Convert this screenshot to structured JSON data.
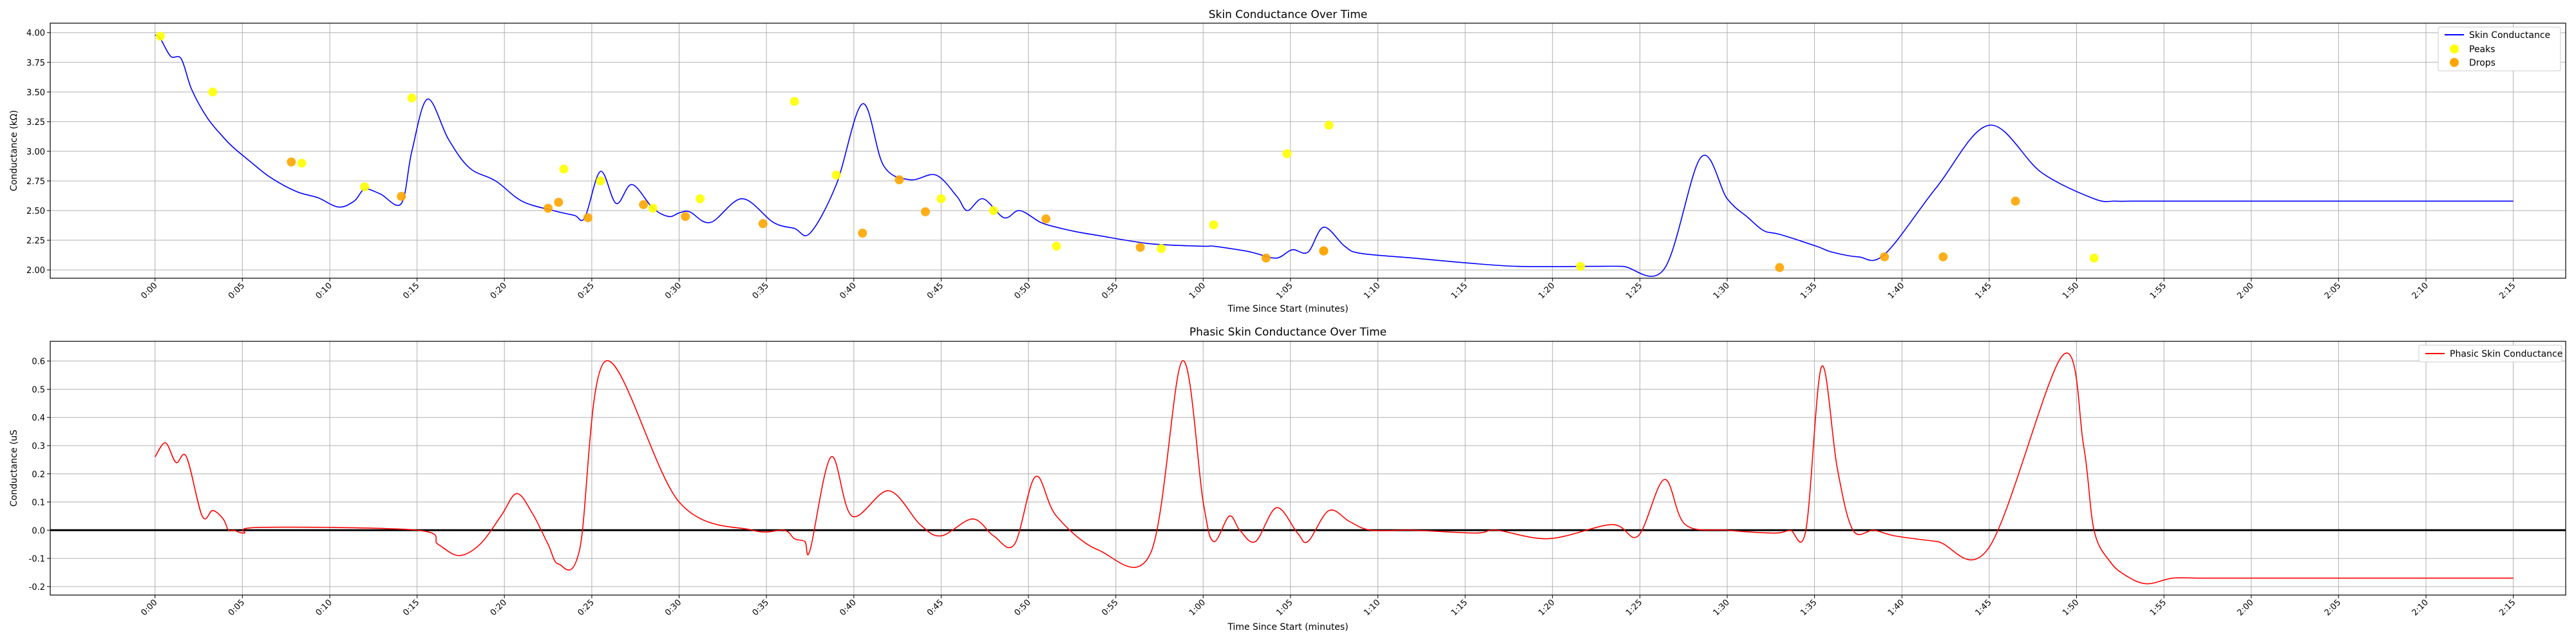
{
  "chart_data": [
    {
      "type": "line",
      "title": "Skin Conductance Over Time",
      "xlabel": "Time Since Start (minutes)",
      "ylabel": "Conductance (kΩ)",
      "xlim": [
        -0.1,
        2.3
      ],
      "ylim": [
        1.93,
        4.08
      ],
      "x_ticks": [
        0,
        0.0833,
        0.1667,
        0.25,
        0.3333,
        0.4167,
        0.5,
        0.5833,
        0.6667,
        0.75,
        0.8333,
        0.9167,
        1.0,
        1.0833,
        1.1667,
        1.25,
        1.3333,
        1.4167,
        1.5,
        1.5833,
        1.6667,
        1.75,
        1.8333,
        1.9167,
        2.0,
        2.0833,
        2.1667,
        2.25
      ],
      "x_tick_labels": [
        "0:00",
        "0:05",
        "0:10",
        "0:15",
        "0:20",
        "0:25",
        "0:30",
        "0:35",
        "0:40",
        "0:45",
        "0:50",
        "0:55",
        "1:00",
        "1:05",
        "1:10",
        "1:15",
        "1:20",
        "1:25",
        "1:30",
        "1:35",
        "1:40",
        "1:45",
        "1:50",
        "1:55",
        "2:00",
        "2:05",
        "2:10",
        "2:15"
      ],
      "y_ticks": [
        2.0,
        2.25,
        2.5,
        2.75,
        3.0,
        3.25,
        3.5,
        3.75,
        4.0
      ],
      "y_tick_labels": [
        "2.00",
        "2.25",
        "2.50",
        "2.75",
        "3.00",
        "3.25",
        "3.50",
        "3.75",
        "4.00"
      ],
      "grid": true,
      "legend_position": "top-right",
      "series": [
        {
          "name": "Skin Conductance",
          "kind": "line",
          "color": "#0000ff",
          "x": [
            0.0,
            0.005,
            0.015,
            0.025,
            0.035,
            0.05,
            0.065,
            0.075,
            0.09,
            0.11,
            0.135,
            0.155,
            0.175,
            0.19,
            0.2,
            0.215,
            0.235,
            0.245,
            0.26,
            0.28,
            0.3,
            0.325,
            0.35,
            0.38,
            0.4,
            0.41,
            0.425,
            0.44,
            0.455,
            0.475,
            0.49,
            0.5,
            0.51,
            0.53,
            0.56,
            0.59,
            0.61,
            0.625,
            0.65,
            0.675,
            0.695,
            0.72,
            0.745,
            0.765,
            0.775,
            0.79,
            0.81,
            0.825,
            0.845,
            0.86,
            0.88,
            0.9,
            0.95,
            1.0,
            1.01,
            1.04,
            1.05,
            1.07,
            1.085,
            1.1,
            1.115,
            1.135,
            1.15,
            1.2,
            1.25,
            1.3,
            1.37,
            1.4,
            1.44,
            1.475,
            1.5,
            1.52,
            1.535,
            1.55,
            1.585,
            1.6,
            1.625,
            1.65,
            1.7,
            1.75,
            1.8,
            1.85,
            1.87,
            1.885,
            1.9,
            1.92,
            1.95,
            2.0,
            2.05,
            2.1,
            2.13,
            2.145,
            2.155,
            2.17,
            2.185,
            2.21,
            2.25
          ],
          "y": [
            3.98,
            3.95,
            3.8,
            3.78,
            3.52,
            3.28,
            3.12,
            3.03,
            2.92,
            2.78,
            2.66,
            2.61,
            2.53,
            2.58,
            2.68,
            2.64,
            2.56,
            3.0,
            3.44,
            3.1,
            2.86,
            2.75,
            2.58,
            2.5,
            2.46,
            2.44,
            2.83,
            2.56,
            2.72,
            2.52,
            2.45,
            2.48,
            2.49,
            2.4,
            2.6,
            2.4,
            2.35,
            2.31,
            2.72,
            3.4,
            2.88,
            2.76,
            2.8,
            2.62,
            2.5,
            2.6,
            2.44,
            2.5,
            2.4,
            2.36,
            2.32,
            2.29,
            2.22,
            2.2,
            2.2,
            2.16,
            2.14,
            2.1,
            2.17,
            2.15,
            2.36,
            2.2,
            2.14,
            2.1,
            2.06,
            2.03,
            2.03,
            2.03,
            2.01,
            2.95,
            2.6,
            2.44,
            2.33,
            2.3,
            2.2,
            2.15,
            2.11,
            2.13,
            2.7,
            3.22,
            2.82,
            2.6,
            2.58,
            2.58,
            2.58,
            2.58,
            2.58,
            2.58,
            2.58,
            2.58,
            2.58,
            2.58,
            2.58,
            2.58,
            2.58,
            2.58,
            2.58
          ]
        },
        {
          "name": "Peaks",
          "kind": "scatter",
          "color": "#ffff00",
          "x": [
            0.005,
            0.055,
            0.14,
            0.2,
            0.245,
            0.39,
            0.425,
            0.475,
            0.52,
            0.61,
            0.65,
            0.75,
            0.8,
            0.86,
            0.96,
            1.01,
            1.08,
            1.12,
            1.36,
            1.85
          ],
          "y": [
            3.97,
            3.5,
            2.9,
            2.7,
            3.45,
            2.85,
            2.75,
            2.52,
            2.6,
            3.42,
            2.8,
            2.6,
            2.5,
            2.2,
            2.18,
            2.38,
            2.98,
            3.22,
            2.03,
            2.1
          ]
        },
        {
          "name": "Drops",
          "kind": "scatter",
          "color": "#ffa500",
          "x": [
            0.13,
            0.235,
            0.375,
            0.385,
            0.413,
            0.466,
            0.506,
            0.58,
            0.675,
            0.71,
            0.735,
            0.85,
            0.94,
            1.06,
            1.115,
            1.115,
            1.55,
            1.65,
            1.706,
            1.775
          ],
          "y": [
            2.91,
            2.62,
            2.52,
            2.57,
            2.44,
            2.55,
            2.45,
            2.39,
            2.31,
            2.76,
            2.49,
            2.43,
            2.19,
            2.1,
            2.16,
            2.16,
            2.02,
            2.11,
            2.11,
            2.58
          ]
        }
      ]
    },
    {
      "type": "line",
      "title": "Phasic Skin Conductance Over Time",
      "xlabel": "Time Since Start (minutes)",
      "ylabel": "Conductance (uS",
      "xlim": [
        -0.1,
        2.3
      ],
      "ylim": [
        -0.23,
        0.67
      ],
      "x_ticks": [
        0,
        0.0833,
        0.1667,
        0.25,
        0.3333,
        0.4167,
        0.5,
        0.5833,
        0.6667,
        0.75,
        0.8333,
        0.9167,
        1.0,
        1.0833,
        1.1667,
        1.25,
        1.3333,
        1.4167,
        1.5,
        1.5833,
        1.6667,
        1.75,
        1.8333,
        1.9167,
        2.0,
        2.0833,
        2.1667,
        2.25
      ],
      "x_tick_labels": [
        "0:00",
        "0:05",
        "0:10",
        "0:15",
        "0:20",
        "0:25",
        "0:30",
        "0:35",
        "0:40",
        "0:45",
        "0:50",
        "0:55",
        "1:00",
        "1:05",
        "1:10",
        "1:15",
        "1:20",
        "1:25",
        "1:30",
        "1:35",
        "1:40",
        "1:45",
        "1:50",
        "1:55",
        "2:00",
        "2:05",
        "2:10",
        "2:15"
      ],
      "y_ticks": [
        -0.2,
        -0.1,
        0.0,
        0.1,
        0.2,
        0.3,
        0.4,
        0.5,
        0.6
      ],
      "y_tick_labels": [
        "-0.2",
        "-0.1",
        "0.0",
        "0.1",
        "0.2",
        "0.3",
        "0.4",
        "0.5",
        "0.6"
      ],
      "grid": true,
      "zero_line": true,
      "legend_position": "top-right",
      "series": [
        {
          "name": "Phasic Skin Conductance",
          "kind": "line",
          "color": "#ff0000",
          "x": [
            0.0,
            0.01,
            0.02,
            0.03,
            0.045,
            0.055,
            0.065,
            0.07,
            0.075,
            0.085,
            0.1,
            0.25,
            0.27,
            0.29,
            0.31,
            0.33,
            0.345,
            0.36,
            0.375,
            0.385,
            0.405,
            0.43,
            0.5,
            0.57,
            0.6,
            0.61,
            0.62,
            0.625,
            0.645,
            0.665,
            0.7,
            0.73,
            0.75,
            0.78,
            0.8,
            0.82,
            0.84,
            0.86,
            0.9,
            0.95,
            0.98,
            1.0,
            1.01,
            1.025,
            1.035,
            1.05,
            1.07,
            1.09,
            1.1,
            1.12,
            1.14,
            1.16,
            1.2,
            1.26,
            1.28,
            1.33,
            1.39,
            1.415,
            1.44,
            1.46,
            1.5,
            1.545,
            1.56,
            1.575,
            1.59,
            1.605,
            1.62,
            1.64,
            1.66,
            1.7,
            1.75,
            1.82,
            1.84,
            1.85,
            1.865,
            1.88,
            1.9,
            1.925,
            1.95,
            2.0,
            2.05,
            2.1,
            2.14,
            2.15,
            2.165,
            2.185,
            2.2,
            2.25
          ],
          "y": [
            0.26,
            0.31,
            0.24,
            0.26,
            0.05,
            0.07,
            0.04,
            0.0,
            0.0,
            -0.01,
            0.01,
            0.0,
            -0.05,
            -0.09,
            -0.05,
            0.05,
            0.13,
            0.06,
            -0.05,
            -0.12,
            -0.07,
            0.6,
            0.1,
            0.0,
            0.0,
            -0.03,
            -0.04,
            -0.07,
            0.26,
            0.05,
            0.14,
            0.02,
            -0.02,
            0.04,
            -0.02,
            -0.05,
            0.19,
            0.05,
            -0.07,
            -0.08,
            0.6,
            0.1,
            -0.04,
            0.05,
            0.0,
            -0.04,
            0.08,
            -0.01,
            -0.04,
            0.07,
            0.03,
            0.0,
            0.0,
            -0.01,
            0.0,
            -0.03,
            0.02,
            -0.02,
            0.18,
            0.02,
            0.0,
            -0.01,
            0.0,
            0.0,
            0.58,
            0.22,
            0.0,
            0.0,
            -0.02,
            -0.04,
            -0.06,
            0.62,
            0.3,
            0.0,
            -0.11,
            -0.16,
            -0.19,
            -0.17,
            -0.17,
            -0.17,
            -0.17,
            -0.17,
            -0.17,
            -0.17,
            -0.17,
            -0.17,
            -0.17,
            -0.17
          ]
        }
      ]
    }
  ]
}
